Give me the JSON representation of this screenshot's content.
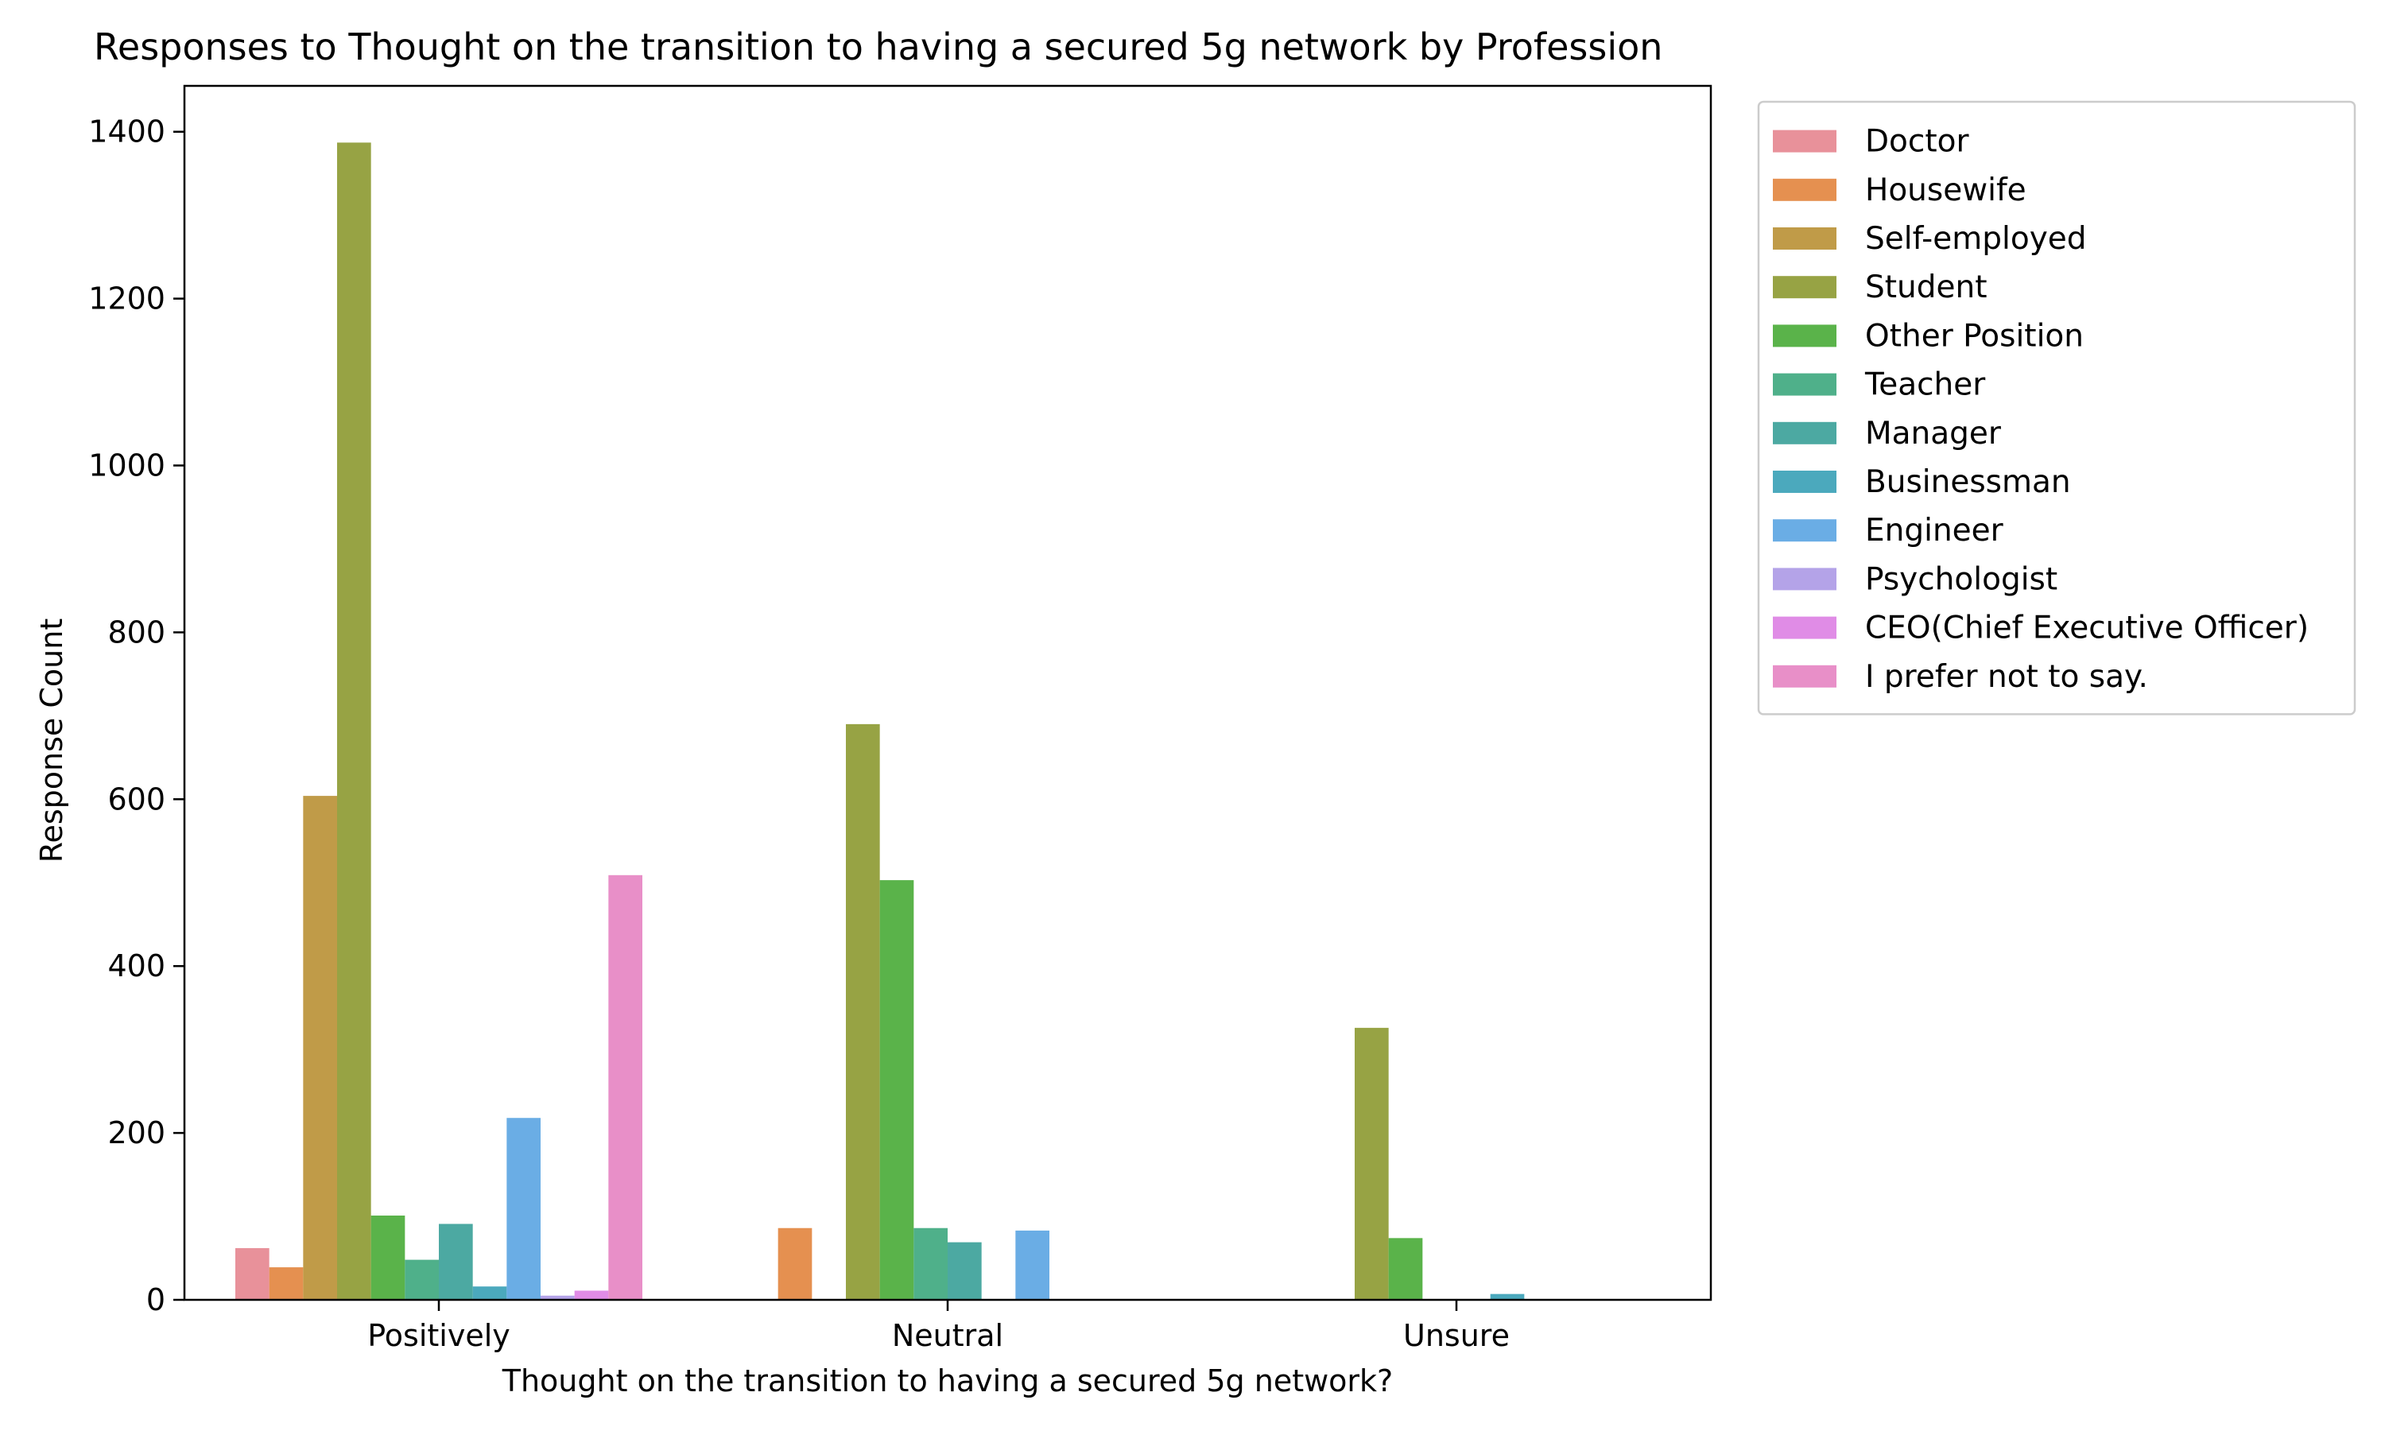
{
  "chart_data": {
    "type": "bar",
    "title": "Responses to Thought on the transition to having a secured 5g network by Profession",
    "xlabel": "Thought on the transition to having a secured 5g network?",
    "ylabel": "Response Count",
    "categories": [
      "Positively",
      "Neutral",
      "Unsure"
    ],
    "ylim": [
      0,
      1455
    ],
    "yticks": [
      0,
      200,
      400,
      600,
      800,
      1000,
      1200,
      1400
    ],
    "grid": false,
    "legend_position": "outside-right",
    "series": [
      {
        "name": "Doctor",
        "color": "#e8919a",
        "values": [
          62,
          0,
          0
        ]
      },
      {
        "name": "Housewife",
        "color": "#e59050",
        "values": [
          39,
          86,
          0
        ]
      },
      {
        "name": "Self-employed",
        "color": "#c09b48",
        "values": [
          604,
          0,
          0
        ]
      },
      {
        "name": "Student",
        "color": "#97a344",
        "values": [
          1387,
          690,
          326
        ]
      },
      {
        "name": "Other Position",
        "color": "#5ab34a",
        "values": [
          101,
          503,
          74
        ]
      },
      {
        "name": "Teacher",
        "color": "#4fb08a",
        "values": [
          48,
          86,
          0
        ]
      },
      {
        "name": "Manager",
        "color": "#4ca9a2",
        "values": [
          91,
          69,
          0
        ]
      },
      {
        "name": "Businessman",
        "color": "#4ba9bd",
        "values": [
          16,
          0,
          7
        ]
      },
      {
        "name": "Engineer",
        "color": "#6aade5",
        "values": [
          218,
          83,
          0
        ]
      },
      {
        "name": "Psychologist",
        "color": "#b4a3e8",
        "values": [
          5,
          0,
          0
        ]
      },
      {
        "name": "CEO(Chief Executive Officer)",
        "color": "#e08ce6",
        "values": [
          11,
          0,
          0
        ]
      },
      {
        "name": "I prefer not to say.",
        "color": "#e88fc8",
        "values": [
          509,
          0,
          0
        ]
      }
    ]
  }
}
